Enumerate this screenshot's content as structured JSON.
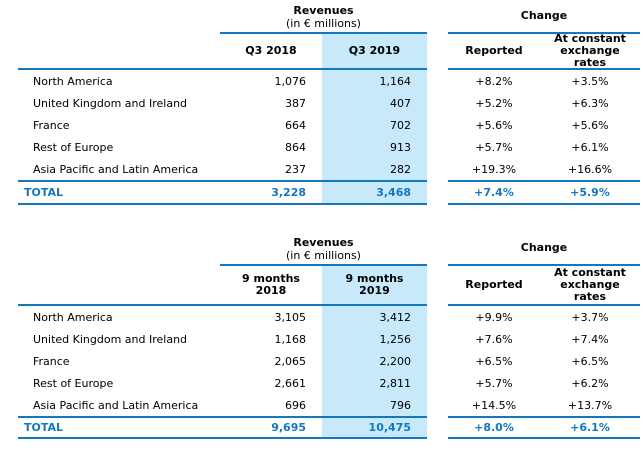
{
  "colors": {
    "accent": "#1577BC",
    "highlight": "#C7E9FA",
    "text": "#000000",
    "background": "#FFFFFF"
  },
  "tables": [
    {
      "id": "q3",
      "revenues_title": "Revenues",
      "revenues_subtitle": "(in € millions)",
      "change_title": "Change",
      "col_prior": "Q3 2018",
      "col_current": "Q3 2019",
      "col_reported": "Reported",
      "col_constant": "At constant\nexchange\nrates",
      "rows": [
        {
          "label": "North America",
          "prior": "1,076",
          "current": "1,164",
          "reported": "+8.2%",
          "constant": "+3.5%"
        },
        {
          "label": "United Kingdom and Ireland",
          "prior": "387",
          "current": "407",
          "reported": "+5.2%",
          "constant": "+6.3%"
        },
        {
          "label": "France",
          "prior": "664",
          "current": "702",
          "reported": "+5.6%",
          "constant": "+5.6%"
        },
        {
          "label": "Rest of Europe",
          "prior": "864",
          "current": "913",
          "reported": "+5.7%",
          "constant": "+6.1%"
        },
        {
          "label": "Asia Pacific and Latin America",
          "prior": "237",
          "current": "282",
          "reported": "+19.3%",
          "constant": "+16.6%"
        }
      ],
      "total": {
        "label": "TOTAL",
        "prior": "3,228",
        "current": "3,468",
        "reported": "+7.4%",
        "constant": "+5.9%"
      }
    },
    {
      "id": "9m",
      "revenues_title": "Revenues",
      "revenues_subtitle": "(in € millions)",
      "change_title": "Change",
      "col_prior": "9 months\n2018",
      "col_current": "9 months\n2019",
      "col_reported": "Reported",
      "col_constant": "At constant\nexchange\nrates",
      "rows": [
        {
          "label": "North America",
          "prior": "3,105",
          "current": "3,412",
          "reported": "+9.9%",
          "constant": "+3.7%"
        },
        {
          "label": "United Kingdom and Ireland",
          "prior": "1,168",
          "current": "1,256",
          "reported": "+7.6%",
          "constant": "+7.4%"
        },
        {
          "label": "France",
          "prior": "2,065",
          "current": "2,200",
          "reported": "+6.5%",
          "constant": "+6.5%"
        },
        {
          "label": "Rest of Europe",
          "prior": "2,661",
          "current": "2,811",
          "reported": "+5.7%",
          "constant": "+6.2%"
        },
        {
          "label": "Asia Pacific and Latin America",
          "prior": "696",
          "current": "796",
          "reported": "+14.5%",
          "constant": "+13.7%"
        }
      ],
      "total": {
        "label": "TOTAL",
        "prior": "9,695",
        "current": "10,475",
        "reported": "+8.0%",
        "constant": "+6.1%"
      }
    }
  ]
}
